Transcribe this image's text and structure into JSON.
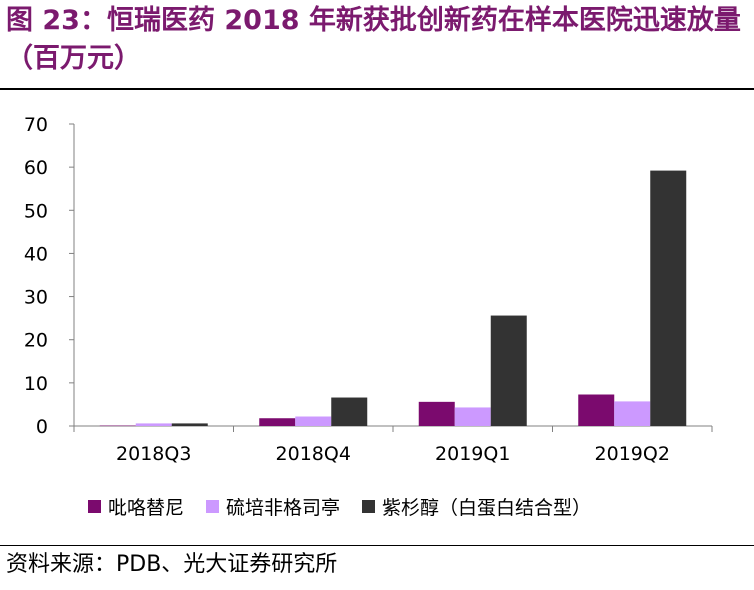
{
  "title": "图 23：恒瑞医药 2018 年新获批创新药在样本医院迅速放量（百万元）",
  "source": "资料来源：PDB、光大证券研究所",
  "colors": {
    "series": [
      "#7B0A6E",
      "#CC99FF",
      "#333333"
    ],
    "axis": "#808080",
    "text": "#000000"
  },
  "chart_data": {
    "type": "bar",
    "categories": [
      "2018Q3",
      "2018Q4",
      "2019Q1",
      "2019Q2"
    ],
    "series": [
      {
        "name": "吡咯替尼",
        "values": [
          0.1,
          1.8,
          5.6,
          7.3
        ]
      },
      {
        "name": "硫培非格司亭",
        "values": [
          0.6,
          2.2,
          4.3,
          5.7
        ]
      },
      {
        "name": "紫杉醇（白蛋白结合型）",
        "values": [
          0.6,
          6.6,
          25.6,
          59.2
        ]
      }
    ],
    "ylim": [
      0,
      70
    ],
    "yticks": [
      "0",
      "10",
      "20",
      "30",
      "40",
      "50",
      "60",
      "70"
    ],
    "legend_position": "bottom",
    "grid": false
  }
}
